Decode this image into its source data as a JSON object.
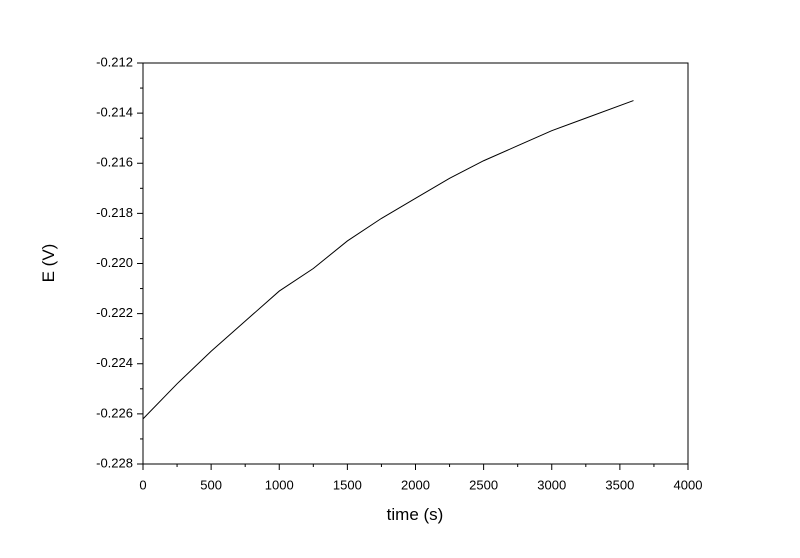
{
  "chart_data": {
    "type": "line",
    "x_label": "time (s)",
    "y_label": "E (V)",
    "x": [
      0,
      250,
      500,
      750,
      1000,
      1250,
      1500,
      1750,
      2000,
      2250,
      2500,
      2750,
      3000,
      3250,
      3600
    ],
    "values": [
      -0.2262,
      -0.2248,
      -0.2235,
      -0.2223,
      -0.2211,
      -0.2202,
      -0.2191,
      -0.2182,
      -0.2174,
      -0.2166,
      -0.2159,
      -0.2153,
      -0.2147,
      -0.2142,
      -0.2135
    ],
    "color": "#000000",
    "xlim": [
      0,
      4000
    ],
    "xticks": [
      0,
      500,
      1000,
      1500,
      2000,
      2500,
      3000,
      3500,
      4000
    ],
    "ylim": [
      -0.228,
      -0.212
    ],
    "yticks": [
      -0.228,
      -0.226,
      -0.224,
      -0.222,
      {
        "value": -0.22,
        "label": "-0.220"
      },
      -0.218,
      -0.216,
      -0.214,
      -0.212
    ],
    "grid": false
  }
}
